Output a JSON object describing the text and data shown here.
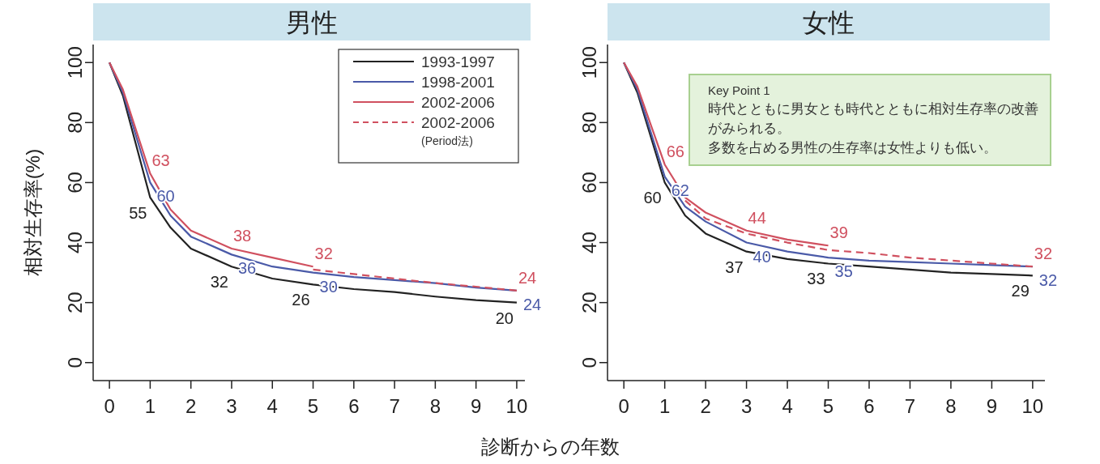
{
  "chart_data": [
    {
      "type": "line",
      "title": "男性",
      "xlabel": "診断からの年数",
      "ylabel": "相対生存率(%)",
      "xlim": [
        -0.4,
        10.2
      ],
      "ylim": [
        -6,
        106
      ],
      "xticks": [
        0,
        1,
        2,
        3,
        4,
        5,
        6,
        7,
        8,
        9,
        10
      ],
      "yticks": [
        0,
        20,
        40,
        60,
        80,
        100
      ],
      "legend": "top right",
      "series": [
        {
          "name": "1993-1997",
          "color": "#222222",
          "x": [
            0,
            0.33,
            1,
            1.5,
            2,
            3,
            4,
            5,
            6,
            7,
            8,
            9,
            10
          ],
          "values": [
            100,
            89,
            55,
            45,
            38,
            32,
            28,
            26,
            24.5,
            23.5,
            22,
            20.8,
            20
          ],
          "value_labels": [
            null,
            null,
            "55",
            null,
            null,
            "32",
            null,
            "26",
            null,
            null,
            null,
            null,
            "20"
          ]
        },
        {
          "name": "1998-2001",
          "color": "#4a5aa8",
          "x": [
            0,
            0.33,
            1,
            1.5,
            2,
            3,
            4,
            5,
            6,
            7,
            8,
            9,
            10
          ],
          "values": [
            100,
            90,
            60,
            49,
            42,
            36,
            32,
            30,
            28.5,
            27.5,
            26.5,
            25,
            24
          ],
          "value_labels": [
            null,
            null,
            "60",
            null,
            null,
            "36",
            null,
            "30",
            null,
            null,
            null,
            null,
            "24"
          ]
        },
        {
          "name": "2002-2006",
          "color": "#d0505f",
          "x": [
            0,
            0.33,
            1,
            1.5,
            2,
            3,
            4,
            5
          ],
          "values": [
            100,
            91,
            63,
            51,
            44,
            38,
            35,
            32
          ],
          "value_labels": [
            null,
            null,
            "63",
            null,
            null,
            "38",
            null,
            "32"
          ]
        },
        {
          "name": "2002-2006 (Period法)",
          "color": "#d0505f",
          "line_style": "dashed",
          "x": [
            5,
            6,
            7,
            8,
            9,
            10
          ],
          "values": [
            31,
            29.5,
            28,
            26.5,
            25.3,
            24
          ],
          "value_labels": [
            null,
            null,
            null,
            null,
            null,
            "24"
          ]
        }
      ]
    },
    {
      "type": "line",
      "title": "女性",
      "xlim": [
        -0.4,
        10.3
      ],
      "ylim": [
        -6,
        106
      ],
      "xticks": [
        0,
        1,
        2,
        3,
        4,
        5,
        6,
        7,
        8,
        9,
        10
      ],
      "yticks": [
        0,
        20,
        40,
        60,
        80,
        100
      ],
      "legend": false,
      "annotations": [
        "Key Point 1",
        "時代とともに男女とも時代とともに相対生存率の改善がみられる。",
        "多数を占める男性の生存率は女性よりも低い。"
      ],
      "series": [
        {
          "color": "#222222",
          "x": [
            0,
            0.33,
            1,
            1.5,
            2,
            3,
            4,
            5,
            6,
            7,
            8,
            9,
            10
          ],
          "values": [
            100,
            90,
            60,
            49,
            43,
            37,
            34.5,
            33,
            32,
            31,
            30,
            29.5,
            29
          ],
          "value_labels": [
            null,
            null,
            "60",
            null,
            null,
            "37",
            null,
            "33",
            null,
            null,
            null,
            null,
            "29"
          ]
        },
        {
          "color": "#4a5aa8",
          "x": [
            0,
            0.33,
            1,
            1.5,
            2,
            3,
            4,
            5,
            6,
            7,
            8,
            9,
            10
          ],
          "values": [
            100,
            91,
            62,
            52,
            47,
            40,
            37,
            35,
            34,
            33.5,
            33,
            32.5,
            32
          ],
          "value_labels": [
            null,
            null,
            "62",
            null,
            null,
            "40",
            null,
            "35",
            null,
            null,
            null,
            null,
            "32"
          ]
        },
        {
          "color": "#d0505f",
          "x": [
            0,
            0.33,
            1,
            1.5,
            2,
            3,
            4,
            5
          ],
          "values": [
            100,
            92,
            66,
            55,
            50,
            44,
            41,
            39
          ],
          "value_labels": [
            null,
            null,
            "66",
            null,
            null,
            "44",
            null,
            "39"
          ]
        },
        {
          "color": "#d0505f",
          "line_style": "dashed",
          "x": [
            1.5,
            2,
            3,
            4,
            5,
            6,
            7,
            8,
            9,
            10
          ],
          "values": [
            54,
            48,
            43,
            40,
            37.5,
            36.5,
            35,
            34,
            33,
            32
          ],
          "value_labels": [
            null,
            null,
            null,
            null,
            null,
            null,
            null,
            null,
            null,
            "32"
          ]
        }
      ]
    }
  ]
}
